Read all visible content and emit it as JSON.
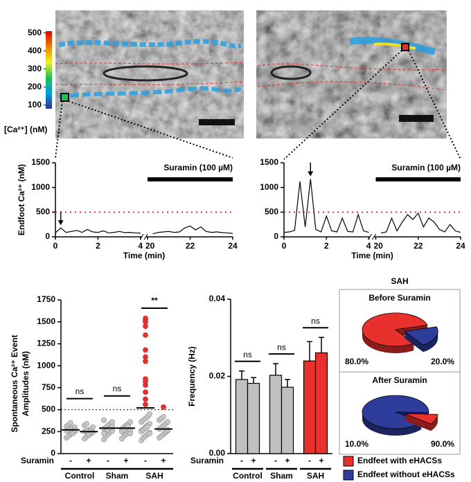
{
  "chart_data": [
    {
      "type": "colorbar",
      "label": "[Ca²⁺] (nM)",
      "ylim": [
        80,
        510
      ],
      "yticks": [
        100,
        200,
        300,
        400,
        500
      ],
      "colors": [
        "#303090",
        "#00a0e0",
        "#20c050",
        "#f0f020",
        "#f08000",
        "#e00000"
      ]
    },
    {
      "type": "line",
      "ylabel": "Endfoot Ca²⁺ (nM)",
      "xlabel": "Time (min)",
      "color": "#000000",
      "xlim": [
        0,
        24
      ],
      "xbreak": [
        4,
        20
      ],
      "xticks": [
        0,
        2,
        4,
        20,
        22,
        24
      ],
      "ylim": [
        0,
        1500
      ],
      "yticks": [
        0,
        500,
        1000,
        1500
      ],
      "threshold": 500,
      "threshold_color": "#e03030",
      "arrow_x": 0.25,
      "suramin": {
        "label": "Suramin (100 µM)",
        "start": 20,
        "end": 24
      },
      "x": [
        0,
        0.25,
        0.5,
        0.75,
        1,
        1.25,
        1.5,
        1.75,
        2,
        2.25,
        2.5,
        2.75,
        3,
        3.25,
        3.5,
        3.75,
        4,
        20,
        20.25,
        20.5,
        20.75,
        21,
        21.25,
        21.5,
        21.75,
        22,
        22.25,
        22.5,
        22.75,
        23,
        23.25,
        23.5,
        23.75,
        24
      ],
      "values": [
        80,
        180,
        90,
        110,
        130,
        90,
        150,
        100,
        90,
        120,
        80,
        90,
        110,
        85,
        90,
        80,
        75,
        null,
        60,
        90,
        100,
        110,
        90,
        100,
        180,
        220,
        140,
        200,
        110,
        90,
        100,
        85,
        80,
        70
      ]
    },
    {
      "type": "line",
      "xlabel": "Time (min)",
      "color": "#000000",
      "xlim": [
        0,
        24
      ],
      "xbreak": [
        4,
        20
      ],
      "xticks": [
        0,
        2,
        4,
        20,
        22,
        24
      ],
      "ylim": [
        0,
        1500
      ],
      "yticks": [
        0,
        500,
        1000,
        1500
      ],
      "threshold": 500,
      "threshold_color": "#e03030",
      "arrow_x": 1.25,
      "suramin": {
        "label": "Suramin (100 µM)",
        "start": 20,
        "end": 24
      },
      "x": [
        0,
        0.25,
        0.5,
        0.75,
        1,
        1.25,
        1.5,
        1.75,
        2,
        2.25,
        2.5,
        2.75,
        3,
        3.25,
        3.5,
        3.75,
        4,
        20,
        20.25,
        20.5,
        20.75,
        21,
        21.25,
        21.5,
        21.75,
        22,
        22.25,
        22.5,
        22.75,
        23,
        23.25,
        23.5,
        23.75,
        24
      ],
      "values": [
        90,
        100,
        130,
        1120,
        200,
        1170,
        150,
        100,
        420,
        120,
        100,
        380,
        110,
        100,
        450,
        120,
        90,
        null,
        80,
        100,
        380,
        120,
        300,
        450,
        350,
        480,
        200,
        380,
        300,
        150,
        100,
        250,
        120,
        90
      ]
    },
    {
      "type": "strip",
      "ylabel": [
        "Spontaneous Ca²⁺ Event",
        "Amplitudes (nM)"
      ],
      "xlabel": "Suramin",
      "groups": [
        "Control",
        "Sham",
        "SAH"
      ],
      "signs": [
        "-",
        "+"
      ],
      "sig": [
        "ns",
        "ns",
        "**"
      ],
      "ylim": [
        0,
        1750
      ],
      "yticks": [
        0,
        250,
        500,
        750,
        1000,
        1250,
        1500,
        1750
      ],
      "threshold": 500,
      "color": "#c8c8c8",
      "highlight_color": "#e03030",
      "columns": [
        {
          "values": [
            180,
            200,
            220,
            240,
            250,
            260,
            270,
            280,
            290,
            300,
            310,
            330,
            350,
            230,
            265
          ],
          "mean": 270
        },
        {
          "values": [
            170,
            190,
            210,
            230,
            240,
            250,
            260,
            270,
            280,
            300,
            320,
            340,
            225,
            255
          ],
          "mean": 250
        },
        {
          "values": [
            160,
            200,
            220,
            240,
            260,
            280,
            300,
            320,
            340,
            360,
            380,
            250,
            270,
            290,
            310,
            230
          ],
          "mean": 290
        },
        {
          "values": [
            170,
            200,
            220,
            240,
            260,
            280,
            300,
            320,
            340,
            360,
            250,
            270,
            290,
            310,
            230
          ],
          "mean": 290
        },
        {
          "values": [
            150,
            180,
            200,
            220,
            240,
            260,
            280,
            300,
            320,
            340,
            360,
            380,
            400,
            420,
            450,
            250,
            270,
            290,
            310,
            230,
            560,
            620,
            700,
            780,
            820,
            850,
            1050,
            1100,
            1180,
            1350,
            1450,
            1500,
            1520,
            1540
          ],
          "mean": 520
        },
        {
          "values": [
            180,
            200,
            220,
            240,
            260,
            280,
            300,
            320,
            340,
            360,
            380,
            400,
            420,
            250,
            270,
            530
          ],
          "mean": 280
        }
      ]
    },
    {
      "type": "bar",
      "ylabel": "Frequency (Hz)",
      "xlabel": "Suramin",
      "groups": [
        "Control",
        "Sham",
        "SAH"
      ],
      "signs": [
        "-",
        "+"
      ],
      "sig": [
        "ns",
        "ns",
        "ns"
      ],
      "ylim": [
        0,
        0.04
      ],
      "yticks": [
        {
          "value": 0,
          "label": "0.00"
        },
        {
          "value": 0.02,
          "label": "0.02"
        },
        {
          "value": 0.04,
          "label": "0.04"
        }
      ],
      "values": [
        0.0192,
        0.0182,
        0.0203,
        0.0172,
        0.024,
        0.0261
      ],
      "errors": [
        0.0022,
        0.0015,
        0.003,
        0.002,
        0.005,
        0.004
      ],
      "colors": [
        "#c0c0c0",
        "#c0c0c0",
        "#c0c0c0",
        "#c0c0c0",
        "#e8302c",
        "#e8302c"
      ]
    },
    {
      "type": "pie",
      "title": "SAH",
      "labels": [
        "Endfeet with eHACSs",
        "Endfeet without eHACSs"
      ],
      "colors": [
        "#e8302c",
        "#2e3d9c"
      ],
      "panels": [
        {
          "title": "Before Suramin",
          "values": [
            80,
            20
          ],
          "value_labels": [
            "80.0%",
            "20.0%"
          ]
        },
        {
          "title": "After Suramin",
          "values": [
            10,
            90
          ],
          "value_labels": [
            "10.0%",
            "90.0%"
          ]
        }
      ]
    }
  ]
}
